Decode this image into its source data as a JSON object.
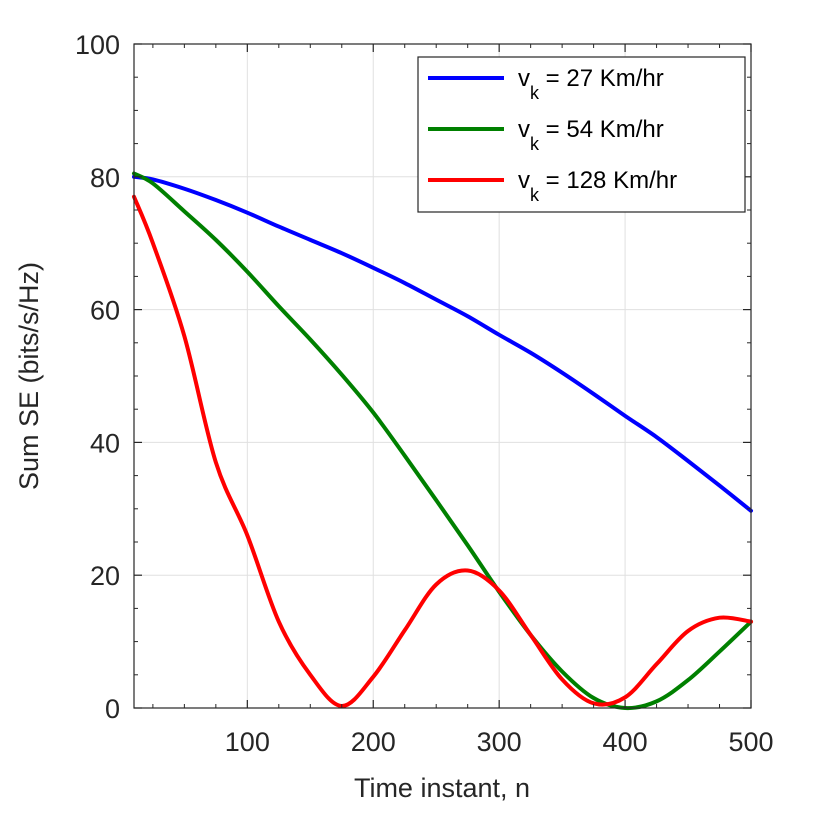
{
  "chart_data": {
    "type": "line",
    "title": "",
    "xlabel": "Time instant, n",
    "ylabel": "Sum SE (bits/s/Hz)",
    "xlim": [
      10,
      500
    ],
    "ylim": [
      0,
      100
    ],
    "xticks": [
      100,
      200,
      300,
      400,
      500
    ],
    "yticks": [
      0,
      20,
      40,
      60,
      80,
      100
    ],
    "grid": true,
    "legend_position": "top-right",
    "x": [
      10,
      25,
      50,
      75,
      100,
      125,
      150,
      175,
      200,
      225,
      250,
      275,
      300,
      325,
      350,
      375,
      400,
      425,
      450,
      475,
      500
    ],
    "series": [
      {
        "name": "v_k = 27 Km/hr",
        "label_main": "v",
        "label_sub": "k",
        "label_rest": " = 27 Km/hr",
        "color": "#0000ff",
        "values": [
          80.0,
          79.6,
          78.2,
          76.5,
          74.6,
          72.5,
          70.5,
          68.5,
          66.3,
          64.0,
          61.5,
          59.0,
          56.2,
          53.5,
          50.5,
          47.3,
          44.0,
          40.8,
          37.2,
          33.5,
          29.7
        ]
      },
      {
        "name": "v_k = 54 Km/hr",
        "label_main": "v",
        "label_sub": "k",
        "label_rest": " = 54 Km/hr",
        "color": "#008000",
        "values": [
          80.5,
          79.0,
          74.8,
          70.5,
          65.7,
          60.5,
          55.5,
          50.2,
          44.5,
          38.0,
          31.3,
          24.5,
          17.5,
          11.0,
          5.5,
          1.5,
          0.0,
          1.0,
          4.2,
          8.5,
          13.0
        ]
      },
      {
        "name": "v_k = 128 Km/hr",
        "label_main": "v",
        "label_sub": "k",
        "label_rest": " = 128 Km/hr",
        "color": "#ff0000",
        "values": [
          77.0,
          70.0,
          56.0,
          37.0,
          26.0,
          13.0,
          5.0,
          0.3,
          4.7,
          11.7,
          18.6,
          20.7,
          17.7,
          11.0,
          4.3,
          0.7,
          1.6,
          6.6,
          11.6,
          13.6,
          13.0
        ]
      }
    ]
  }
}
